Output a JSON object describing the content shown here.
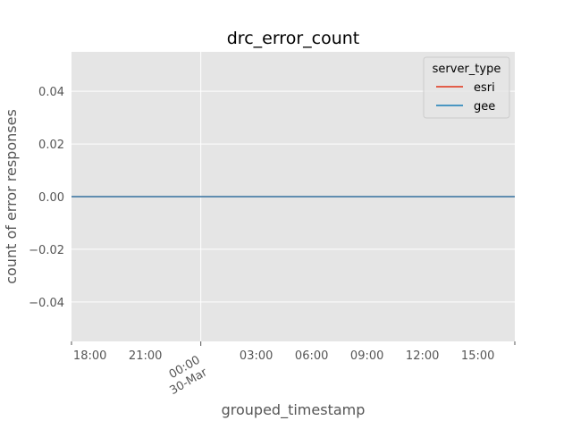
{
  "chart_data": {
    "type": "line",
    "title": "drc_error_count",
    "xlabel": "grouped_timestamp",
    "ylabel": "count of error responses",
    "x_ticks": [
      {
        "x": "2018-03-29T18:00",
        "label": "18:00"
      },
      {
        "x": "2018-03-29T21:00",
        "label": "21:00"
      },
      {
        "x": "2018-03-30T00:00",
        "label": "00:00",
        "sublabel": "30-Mar"
      },
      {
        "x": "2018-03-30T03:00",
        "label": "03:00"
      },
      {
        "x": "2018-03-30T06:00",
        "label": "06:00"
      },
      {
        "x": "2018-03-30T09:00",
        "label": "09:00"
      },
      {
        "x": "2018-03-30T12:00",
        "label": "12:00"
      },
      {
        "x": "2018-03-30T15:00",
        "label": "15:00"
      }
    ],
    "xlim": [
      "2018-03-29T17:00",
      "2018-03-30T17:00"
    ],
    "y_ticks": [
      {
        "y": 0.04,
        "label": "0.04"
      },
      {
        "y": 0.02,
        "label": "0.02"
      },
      {
        "y": 0.0,
        "label": "0.00"
      },
      {
        "y": -0.02,
        "label": "−0.02"
      },
      {
        "y": -0.04,
        "label": "−0.04"
      }
    ],
    "ylim": [
      -0.055,
      0.055
    ],
    "grid": true,
    "legend": {
      "title": "server_type",
      "placement": "top-right"
    },
    "series": [
      {
        "name": "esri",
        "color": "#E24A33",
        "x": [
          "2018-03-29T17:00",
          "2018-03-30T17:00"
        ],
        "y": [
          0,
          0
        ]
      },
      {
        "name": "gee",
        "color": "#348ABD",
        "x": [
          "2018-03-29T17:00",
          "2018-03-30T17:00"
        ],
        "y": [
          0,
          0
        ]
      }
    ]
  },
  "colors": {
    "plot_background": "#E5E5E5",
    "grid": "#FFFFFF",
    "tick_label": "#555555"
  }
}
